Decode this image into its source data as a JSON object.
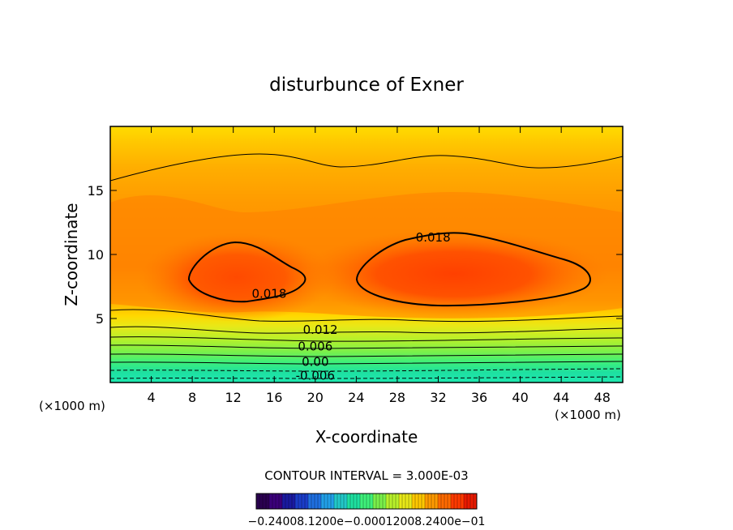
{
  "chart_data": {
    "type": "contour",
    "title": "disturbunce of Exner",
    "xlabel": "X-coordinate",
    "ylabel": "Z-coordinate",
    "x_unit_left": "(×1000 m)",
    "x_unit_right": "(×1000 m)",
    "xlim": [
      0,
      50
    ],
    "ylim": [
      0,
      20
    ],
    "x_ticks": [
      4,
      8,
      12,
      16,
      20,
      24,
      28,
      32,
      36,
      40,
      44,
      48
    ],
    "y_ticks": [
      5,
      10,
      15
    ],
    "contour_interval_text": "CONTOUR INTERVAL = 3.000E-03",
    "contour_labels": [
      {
        "text": "0.018",
        "x": 15.5,
        "z": 6.8
      },
      {
        "text": "0.018",
        "x": 31.5,
        "z": 11.2
      },
      {
        "text": "0.012",
        "x": 20.5,
        "z": 4.0
      },
      {
        "text": "0.006",
        "x": 20.0,
        "z": 2.7
      },
      {
        "text": "0.00",
        "x": 20.0,
        "z": 1.5
      },
      {
        "text": "-0.006",
        "x": 20.0,
        "z": 0.4
      }
    ],
    "max_centers": [
      {
        "x": 13,
        "z": 8.5,
        "value": 0.02
      },
      {
        "x": 34,
        "z": 8.2,
        "value": 0.021
      }
    ],
    "colorbar": {
      "labels_text": "−0.24008.1200e−0.00012008.2400e−01",
      "colors": [
        "#2a0050",
        "#3b007a",
        "#1a1aa0",
        "#1a3cc8",
        "#1f6fe0",
        "#22a0e8",
        "#22c8c8",
        "#1ee0a0",
        "#3ef07a",
        "#7af04a",
        "#b8f02a",
        "#e8e818",
        "#ffc800",
        "#ff9a00",
        "#ff6a00",
        "#ff3a00",
        "#e81a00"
      ]
    }
  }
}
